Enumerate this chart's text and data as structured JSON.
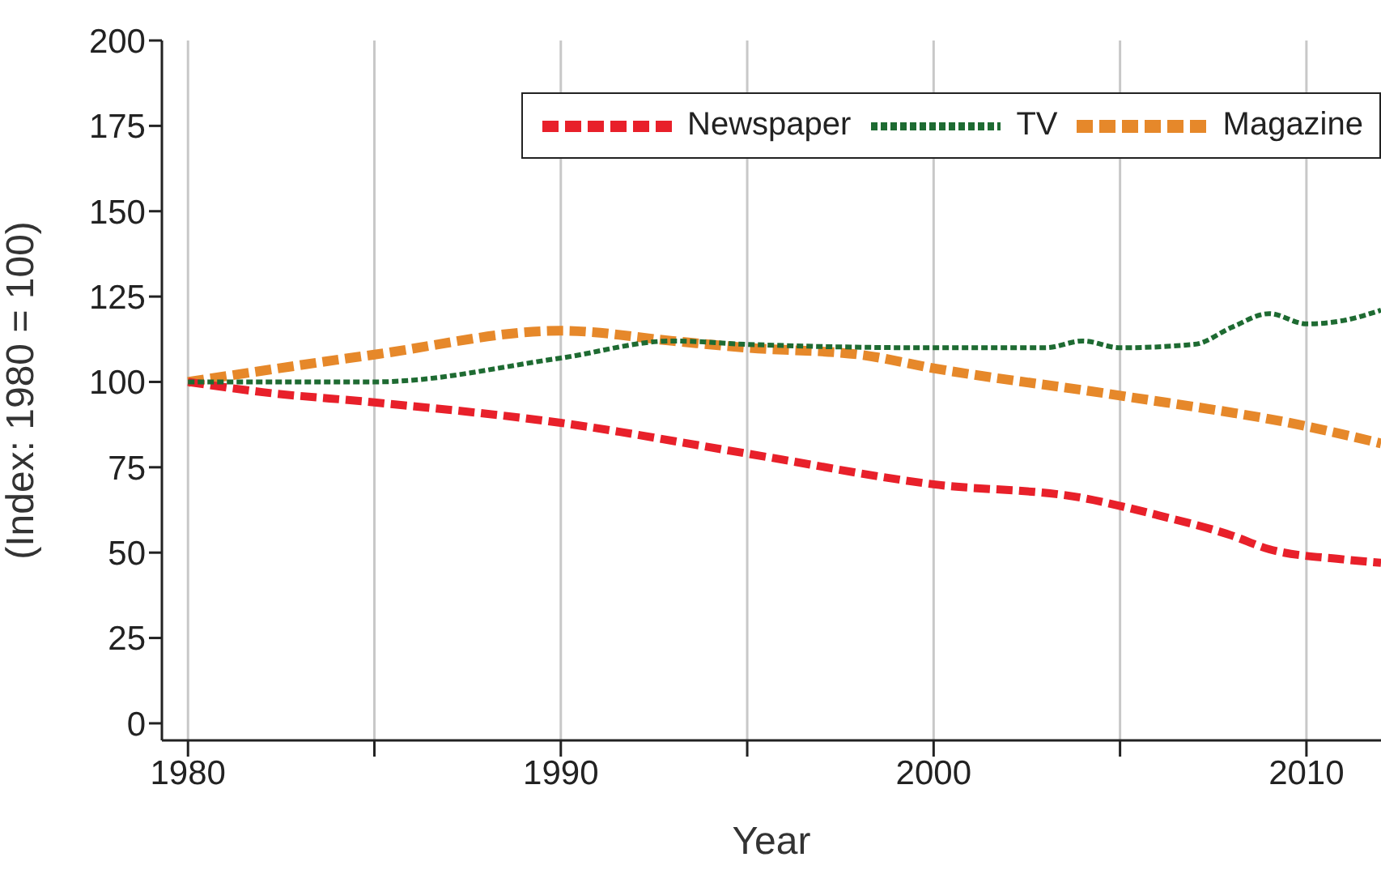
{
  "chart_data": {
    "type": "line",
    "xlabel": "Year",
    "ylabel": "(Index: 1980 = 100)",
    "xlim": [
      1979.3,
      2012
    ],
    "xticks": [
      1980,
      {
        "value": 1985,
        "label": null
      },
      1990,
      {
        "value": 1995,
        "label": null
      },
      2000,
      {
        "value": 2005,
        "label": null
      },
      2010
    ],
    "ylim": [
      -5,
      200
    ],
    "yticks": [
      0,
      25,
      50,
      75,
      100,
      125,
      150,
      175,
      200
    ],
    "grid": "x",
    "legend": "top right",
    "marker": "none",
    "series": [
      {
        "name": "Newspaper",
        "color": "#e8202a",
        "line_style": "dashed",
        "x": [
          1980,
          1982,
          1985,
          1990,
          1995,
          2000,
          2004,
          2006,
          2008,
          2009,
          2011,
          2012
        ],
        "values": [
          100,
          97,
          94,
          88,
          79,
          70,
          66,
          61,
          55,
          51,
          48,
          47
        ]
      },
      {
        "name": "TV",
        "color": "#1e6b32",
        "line_style": "dotted",
        "x": [
          1980,
          1985,
          1990,
          1993,
          1995,
          2000,
          2003,
          2004,
          2005,
          2007,
          2008,
          2009,
          2010,
          2011,
          2012
        ],
        "values": [
          100,
          100,
          107,
          112,
          111,
          110,
          110,
          112,
          110,
          111,
          116,
          120,
          117,
          118,
          121
        ]
      },
      {
        "name": "Magazine",
        "color": "#e6882a",
        "line_style": "dashed",
        "x": [
          1980,
          1985,
          1990,
          1993,
          1995,
          1998,
          2000,
          2005,
          2010,
          2012
        ],
        "values": [
          100,
          108,
          115,
          112,
          110,
          108,
          104,
          96,
          87,
          82
        ]
      }
    ]
  }
}
